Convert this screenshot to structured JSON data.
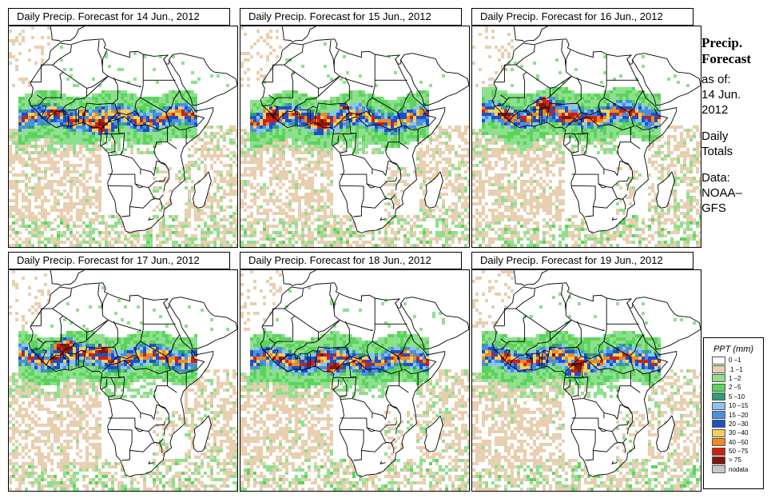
{
  "panels": [
    {
      "title_prefix": "Daily Precip. Forecast for",
      "date": "14 Jun., 2012",
      "band_shift": -2,
      "hotspots": [
        {
          "lon": 9,
          "lat": 5.5,
          "size": 1.0
        },
        {
          "lon": -8,
          "lat": 10,
          "size": 0.5
        },
        {
          "lon": 3,
          "lat": 9.5,
          "size": 0.4
        }
      ]
    },
    {
      "title_prefix": "Daily Precip. Forecast for",
      "date": "15 Jun., 2012",
      "band_shift": -3,
      "hotspots": [
        {
          "lon": 5,
          "lat": 6,
          "size": 1.0
        },
        {
          "lon": -13,
          "lat": 9,
          "size": 0.8
        },
        {
          "lon": 14,
          "lat": 12,
          "size": 0.4
        }
      ]
    },
    {
      "title_prefix": "Daily Precip. Forecast for",
      "date": "16 Jun., 2012",
      "band_shift": 0,
      "hotspots": [
        {
          "lon": 2,
          "lat": 13,
          "size": 0.8
        },
        {
          "lon": 10,
          "lat": 8,
          "size": 0.7
        },
        {
          "lon": -13,
          "lat": 9,
          "size": 0.6
        }
      ]
    },
    {
      "title_prefix": "Daily Precip. Forecast for",
      "date": "17 Jun., 2012",
      "band_shift": 1,
      "hotspots": [
        {
          "lon": -4,
          "lat": 13,
          "size": 0.9
        },
        {
          "lon": 10,
          "lat": 12,
          "size": 0.6
        },
        {
          "lon": -8,
          "lat": 9,
          "size": 0.4
        }
      ]
    },
    {
      "title_prefix": "Daily Precip. Forecast for",
      "date": "18 Jun., 2012",
      "band_shift": -1,
      "hotspots": [
        {
          "lon": 10,
          "lat": 6,
          "size": 0.7
        },
        {
          "lon": -10,
          "lat": 9,
          "size": 0.4
        },
        {
          "lon": 5,
          "lat": 11,
          "size": 0.3
        }
      ]
    },
    {
      "title_prefix": "Daily Precip. Forecast for",
      "date": "19 Jun., 2012",
      "band_shift": 0,
      "hotspots": [
        {
          "lon": 14,
          "lat": 6,
          "size": 0.9
        },
        {
          "lon": 5,
          "lat": 11,
          "size": 0.4
        },
        {
          "lon": -12,
          "lat": 10,
          "size": 0.3
        }
      ]
    }
  ],
  "side": {
    "title_line1": "Precip.",
    "title_line2": "Forecast",
    "asof": "as of:",
    "date_line1": "14 Jun.",
    "date_line2": "2012",
    "totals_line1": "Daily",
    "totals_line2": "Totals",
    "data_line1": "Data:",
    "data_line2": "NOAA–",
    "data_line3": "GFS"
  },
  "legend": {
    "title": "PPT (mm)",
    "items": [
      {
        "label": "0 –1",
        "color": "#ffffff"
      },
      {
        "label": ".1 –1",
        "color": "#e8cfb0"
      },
      {
        "label": "1 –2",
        "color": "#8ee08e"
      },
      {
        "label": "2 –5",
        "color": "#5cd45c"
      },
      {
        "label": "5 –10",
        "color": "#2e9e78"
      },
      {
        "label": "10 –15",
        "color": "#8cc4f0"
      },
      {
        "label": "15 –20",
        "color": "#4a90e0"
      },
      {
        "label": "20 –30",
        "color": "#1c50c8"
      },
      {
        "label": "30 –40",
        "color": "#f0d060"
      },
      {
        "label": "40 –50",
        "color": "#f08a20"
      },
      {
        "label": "50 –75",
        "color": "#d02010"
      },
      {
        "label": "> 75",
        "color": "#7a1a10"
      },
      {
        "label": "nodata",
        "color": "#c8c8c8"
      }
    ]
  }
}
